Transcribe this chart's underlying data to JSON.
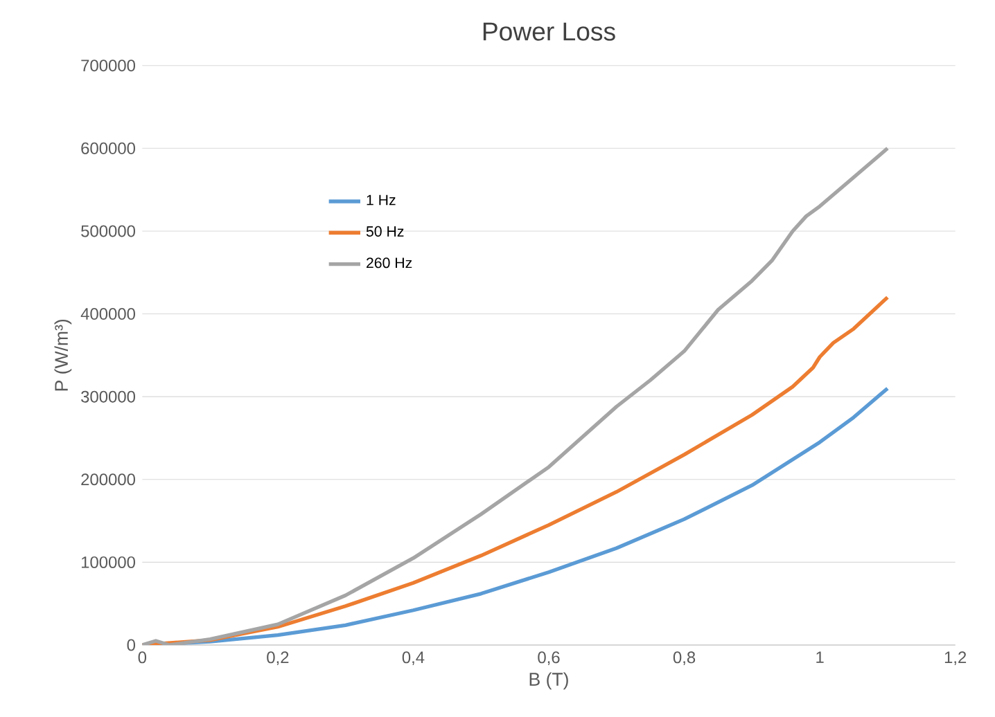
{
  "chart_data": {
    "type": "line",
    "title": "Power Loss",
    "xlabel": "B (T)",
    "ylabel": "P (W/m³)",
    "xlim": [
      0,
      1.2
    ],
    "ylim": [
      0,
      700000
    ],
    "xticks": [
      0,
      {
        "value": 0.2,
        "label": "0,2"
      },
      {
        "value": 0.4,
        "label": "0,4"
      },
      {
        "value": 0.6,
        "label": "0,6"
      },
      {
        "value": 0.8,
        "label": "0,8"
      },
      1,
      {
        "value": 1.2,
        "label": "1,2"
      }
    ],
    "yticks": [
      0,
      100000,
      200000,
      300000,
      400000,
      500000,
      600000,
      700000
    ],
    "grid": "y",
    "legend": "top left",
    "marker": "none",
    "line_style": "solid",
    "series": [
      {
        "name": "1 Hz",
        "color": "#5b9bd5",
        "x": [
          0,
          0.1,
          0.2,
          0.3,
          0.4,
          0.5,
          0.6,
          0.7,
          0.8,
          0.9,
          1.0,
          1.05,
          1.1
        ],
        "values": [
          0,
          4000,
          12000,
          24000,
          42000,
          62000,
          88000,
          117000,
          152000,
          193000,
          245000,
          275000,
          310000
        ]
      },
      {
        "name": "50 Hz",
        "color": "#ed7d31",
        "x": [
          0,
          0.1,
          0.2,
          0.3,
          0.4,
          0.5,
          0.6,
          0.7,
          0.8,
          0.9,
          0.96,
          0.99,
          1.0,
          1.02,
          1.05,
          1.1
        ],
        "values": [
          0,
          6000,
          22000,
          47000,
          75000,
          108000,
          145000,
          185000,
          230000,
          278000,
          312000,
          335000,
          348000,
          365000,
          382000,
          420000
        ]
      },
      {
        "name": "260 Hz",
        "color": "#a5a5a5",
        "x": [
          0,
          0.02,
          0.04,
          0.1,
          0.2,
          0.3,
          0.4,
          0.5,
          0.6,
          0.7,
          0.75,
          0.8,
          0.83,
          0.85,
          0.9,
          0.93,
          0.96,
          0.98,
          1.0,
          1.05,
          1.1
        ],
        "values": [
          0,
          5000,
          0,
          7000,
          25000,
          60000,
          105000,
          158000,
          215000,
          288000,
          320000,
          355000,
          385000,
          405000,
          440000,
          465000,
          500000,
          518000,
          530000,
          565000,
          600000
        ]
      }
    ]
  }
}
